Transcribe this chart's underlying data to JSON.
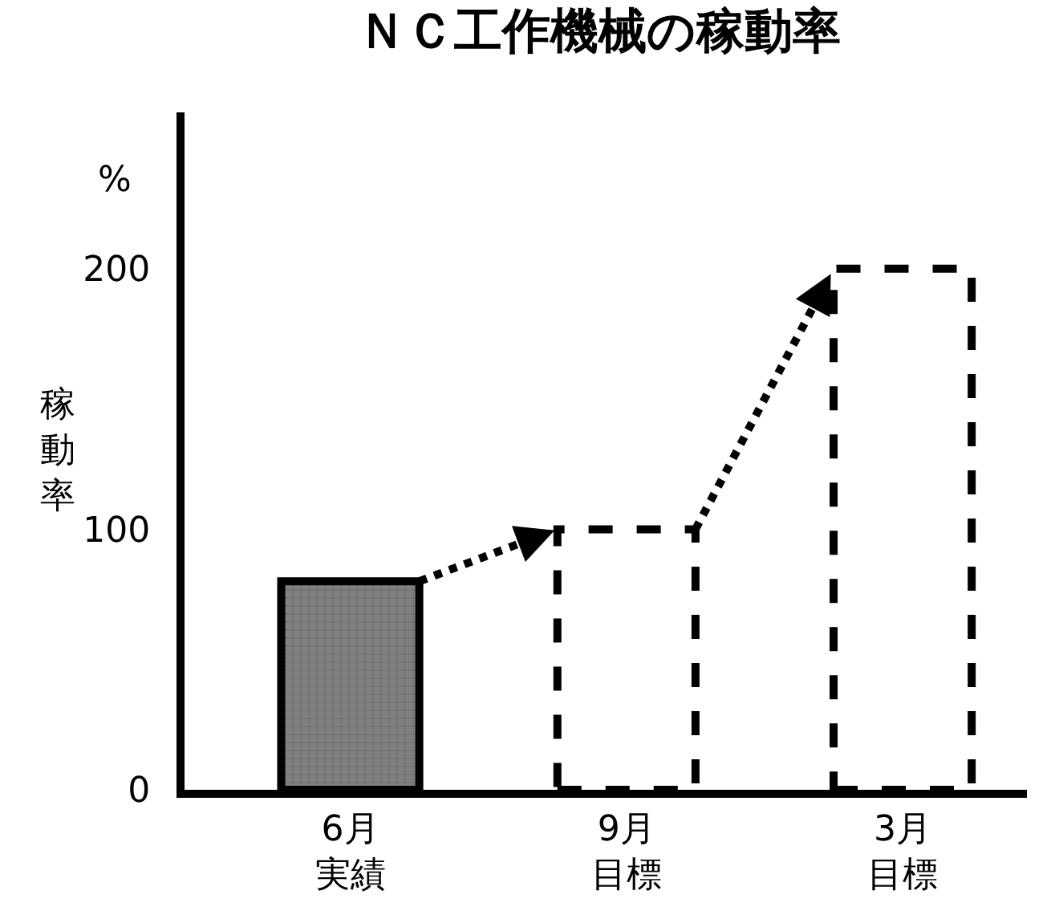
{
  "chart_data": {
    "type": "bar",
    "title": "ＮＣ工作機械の稼動率",
    "ylabel": "稼動率",
    "annotations": [
      "%"
    ],
    "categories": [
      "6月実績",
      "9月目標",
      "3月目標"
    ],
    "series": [
      {
        "color": "#808080",
        "values": [
          80,
          null,
          null
        ],
        "line_style": "solid"
      },
      {
        "color": "#ffffff",
        "values": [
          null,
          100,
          200
        ],
        "line_style": "dashed"
      }
    ],
    "ylim": [
      0,
      260
    ],
    "yticks": [
      0,
      100,
      200
    ]
  }
}
